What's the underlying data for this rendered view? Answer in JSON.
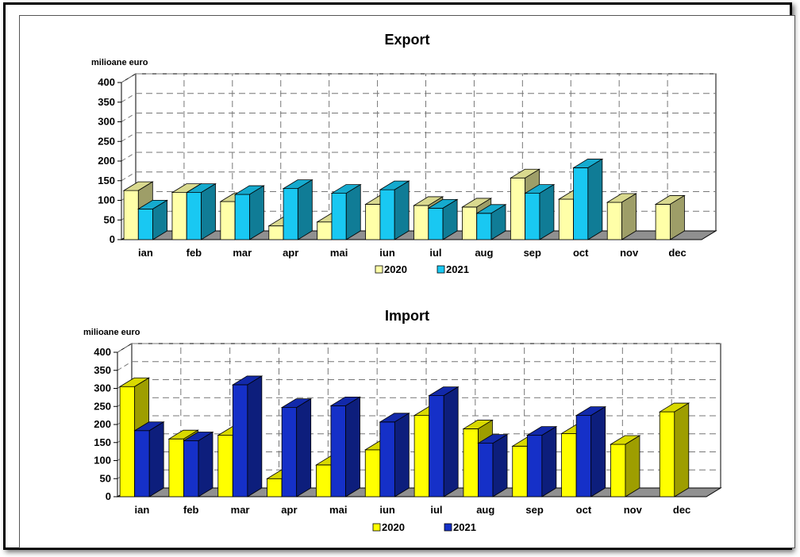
{
  "chart_data": [
    {
      "type": "bar",
      "title": "Export",
      "ylabel": "milioane euro",
      "ylim": [
        0,
        400
      ],
      "yticks": [
        0,
        50,
        100,
        150,
        200,
        250,
        300,
        350,
        400
      ],
      "categories": [
        "ian",
        "feb",
        "mar",
        "apr",
        "mai",
        "iun",
        "iul",
        "aug",
        "sep",
        "oct",
        "nov",
        "dec"
      ],
      "series": [
        {
          "name": "2020",
          "color": "#ffffa8",
          "values": [
            125,
            120,
            97,
            35,
            45,
            90,
            87,
            83,
            157,
            103,
            95,
            90
          ]
        },
        {
          "name": "2021",
          "color": "#19c8f2",
          "values": [
            78,
            120,
            115,
            130,
            118,
            127,
            80,
            67,
            118,
            183,
            null,
            null
          ]
        }
      ],
      "grid": true,
      "legend": "bottom"
    },
    {
      "type": "bar",
      "title": "Import",
      "ylabel": "milioane euro",
      "ylim": [
        0,
        400
      ],
      "yticks": [
        0,
        50,
        100,
        150,
        200,
        250,
        300,
        350,
        400
      ],
      "categories": [
        "ian",
        "feb",
        "mar",
        "apr",
        "mai",
        "iun",
        "iul",
        "aug",
        "sep",
        "oct",
        "nov",
        "dec"
      ],
      "series": [
        {
          "name": "2020",
          "color": "#ffff00",
          "values": [
            305,
            160,
            170,
            50,
            88,
            130,
            225,
            188,
            140,
            175,
            145,
            235
          ]
        },
        {
          "name": "2021",
          "color": "#1530c8",
          "values": [
            183,
            155,
            310,
            247,
            252,
            207,
            280,
            148,
            170,
            225,
            null,
            null
          ]
        }
      ],
      "grid": true,
      "legend": "bottom"
    }
  ]
}
